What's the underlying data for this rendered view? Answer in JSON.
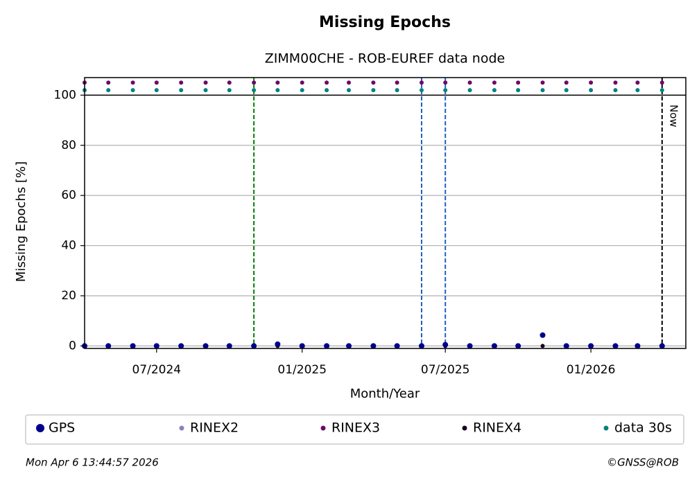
{
  "chart_data": {
    "type": "scatter",
    "title": "Missing Epochs",
    "subtitle": "ZIMM00CHE - ROB-EUREF data node",
    "x_label": "Month/Year",
    "y_label": "Missing Epochs [%]",
    "x": [
      "2024-04",
      "2024-05",
      "2024-06",
      "2024-07",
      "2024-08",
      "2024-09",
      "2024-10",
      "2024-11",
      "2024-12",
      "2025-01",
      "2025-02",
      "2025-03",
      "2025-04",
      "2025-05",
      "2025-06",
      "2025-07",
      "2025-08",
      "2025-09",
      "2025-10",
      "2025-11",
      "2025-12",
      "2026-01",
      "2026-02",
      "2026-03",
      "2026-04"
    ],
    "series": [
      {
        "name": "GPS",
        "color": "#00008b",
        "values": [
          0,
          0,
          0,
          0,
          0,
          0,
          0,
          0,
          0.7,
          0,
          0,
          0,
          0,
          0,
          0,
          0.5,
          0,
          0,
          0,
          4.3,
          0,
          0,
          0,
          0,
          0
        ]
      },
      {
        "name": "RINEX2",
        "color": "#8c7fbf",
        "values": [
          null,
          null,
          null,
          null,
          null,
          null,
          null,
          null,
          null,
          null,
          null,
          null,
          null,
          null,
          null,
          null,
          null,
          null,
          null,
          null,
          null,
          null,
          null,
          null,
          null
        ]
      },
      {
        "name": "RINEX3",
        "color": "#6a0a6a",
        "values": [
          105,
          105,
          105,
          105,
          105,
          105,
          105,
          105,
          105,
          105,
          105,
          105,
          105,
          105,
          105,
          105,
          105,
          105,
          105,
          105,
          105,
          105,
          105,
          105,
          105
        ]
      },
      {
        "name": "RINEX4",
        "color": "#1a0022",
        "values": [
          0,
          0,
          0,
          0,
          0,
          0,
          0,
          0,
          0,
          0,
          0,
          0,
          0,
          0,
          0,
          0,
          0,
          0,
          0,
          0,
          0,
          0,
          0,
          0,
          0
        ]
      },
      {
        "name": "data 30s",
        "color": "#008080",
        "values": [
          102,
          102,
          102,
          102,
          102,
          102,
          102,
          102,
          102,
          102,
          102,
          102,
          102,
          102,
          102,
          102,
          102,
          102,
          102,
          102,
          102,
          102,
          102,
          102,
          102
        ]
      }
    ],
    "xlim": [
      "2024-04",
      "2026-05"
    ],
    "xticks": [
      {
        "value": "2024-07",
        "label": "07/2024"
      },
      {
        "value": "2025-01",
        "label": "01/2025"
      },
      {
        "value": "2025-07",
        "label": "07/2025"
      },
      {
        "value": "2026-01",
        "label": "01/2026"
      }
    ],
    "ylim": [
      -1,
      107
    ],
    "yticks": [
      0,
      20,
      40,
      60,
      80,
      100
    ],
    "grid": true,
    "ref_line": 100,
    "events": [
      {
        "x": "2024-11",
        "color": "green"
      },
      {
        "x": "2025-06",
        "color": "#1f5fbf"
      },
      {
        "x": "2025-07",
        "color": "#1f5fbf"
      }
    ],
    "now": {
      "x": "2026-04",
      "label": "Now"
    },
    "legend": "bottom",
    "timestamp": "Mon Apr  6 13:44:57 2026",
    "credit": "©GNSS@ROB"
  }
}
